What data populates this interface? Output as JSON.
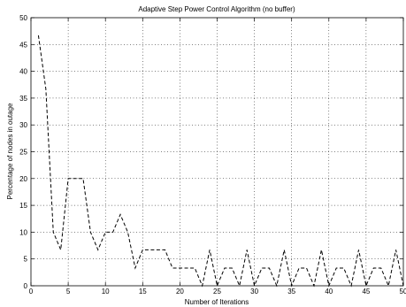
{
  "chart_data": {
    "type": "line",
    "title": "Adaptive Step Power Control Algorithm (no buffer)",
    "xlabel": "Number of Iterations",
    "ylabel": "Percentage of nodes in outage",
    "xlim": [
      0,
      50
    ],
    "ylim": [
      0,
      50
    ],
    "xticks": [
      0,
      5,
      10,
      15,
      20,
      25,
      30,
      35,
      40,
      45,
      50
    ],
    "yticks": [
      0,
      5,
      10,
      15,
      20,
      25,
      30,
      35,
      40,
      45,
      50
    ],
    "grid": true,
    "series": [
      {
        "x": [
          1,
          2,
          3,
          4,
          5,
          6,
          7,
          8,
          9,
          10,
          11,
          12,
          13,
          14,
          15,
          16,
          17,
          18,
          19,
          20,
          21,
          22,
          23,
          24,
          25,
          26,
          27,
          28,
          29,
          30,
          31,
          32,
          33,
          34,
          35,
          36,
          37,
          38,
          39,
          40,
          41,
          42,
          43,
          44,
          45,
          46,
          47,
          48,
          49,
          50
        ],
        "y": [
          46.7,
          36.7,
          10,
          6.7,
          20,
          20,
          20,
          10,
          6.7,
          10,
          10,
          13.3,
          10,
          3.3,
          6.7,
          6.7,
          6.7,
          6.7,
          3.3,
          3.3,
          3.3,
          3.3,
          0,
          6.7,
          0,
          3.3,
          3.3,
          0,
          6.7,
          0,
          3.3,
          3.3,
          0,
          6.7,
          0,
          3.3,
          3.3,
          0,
          6.7,
          0,
          3.3,
          3.3,
          0,
          6.7,
          0,
          3.3,
          3.3,
          0,
          6.7,
          0
        ],
        "style": "dashed",
        "color": "#000000"
      }
    ]
  }
}
